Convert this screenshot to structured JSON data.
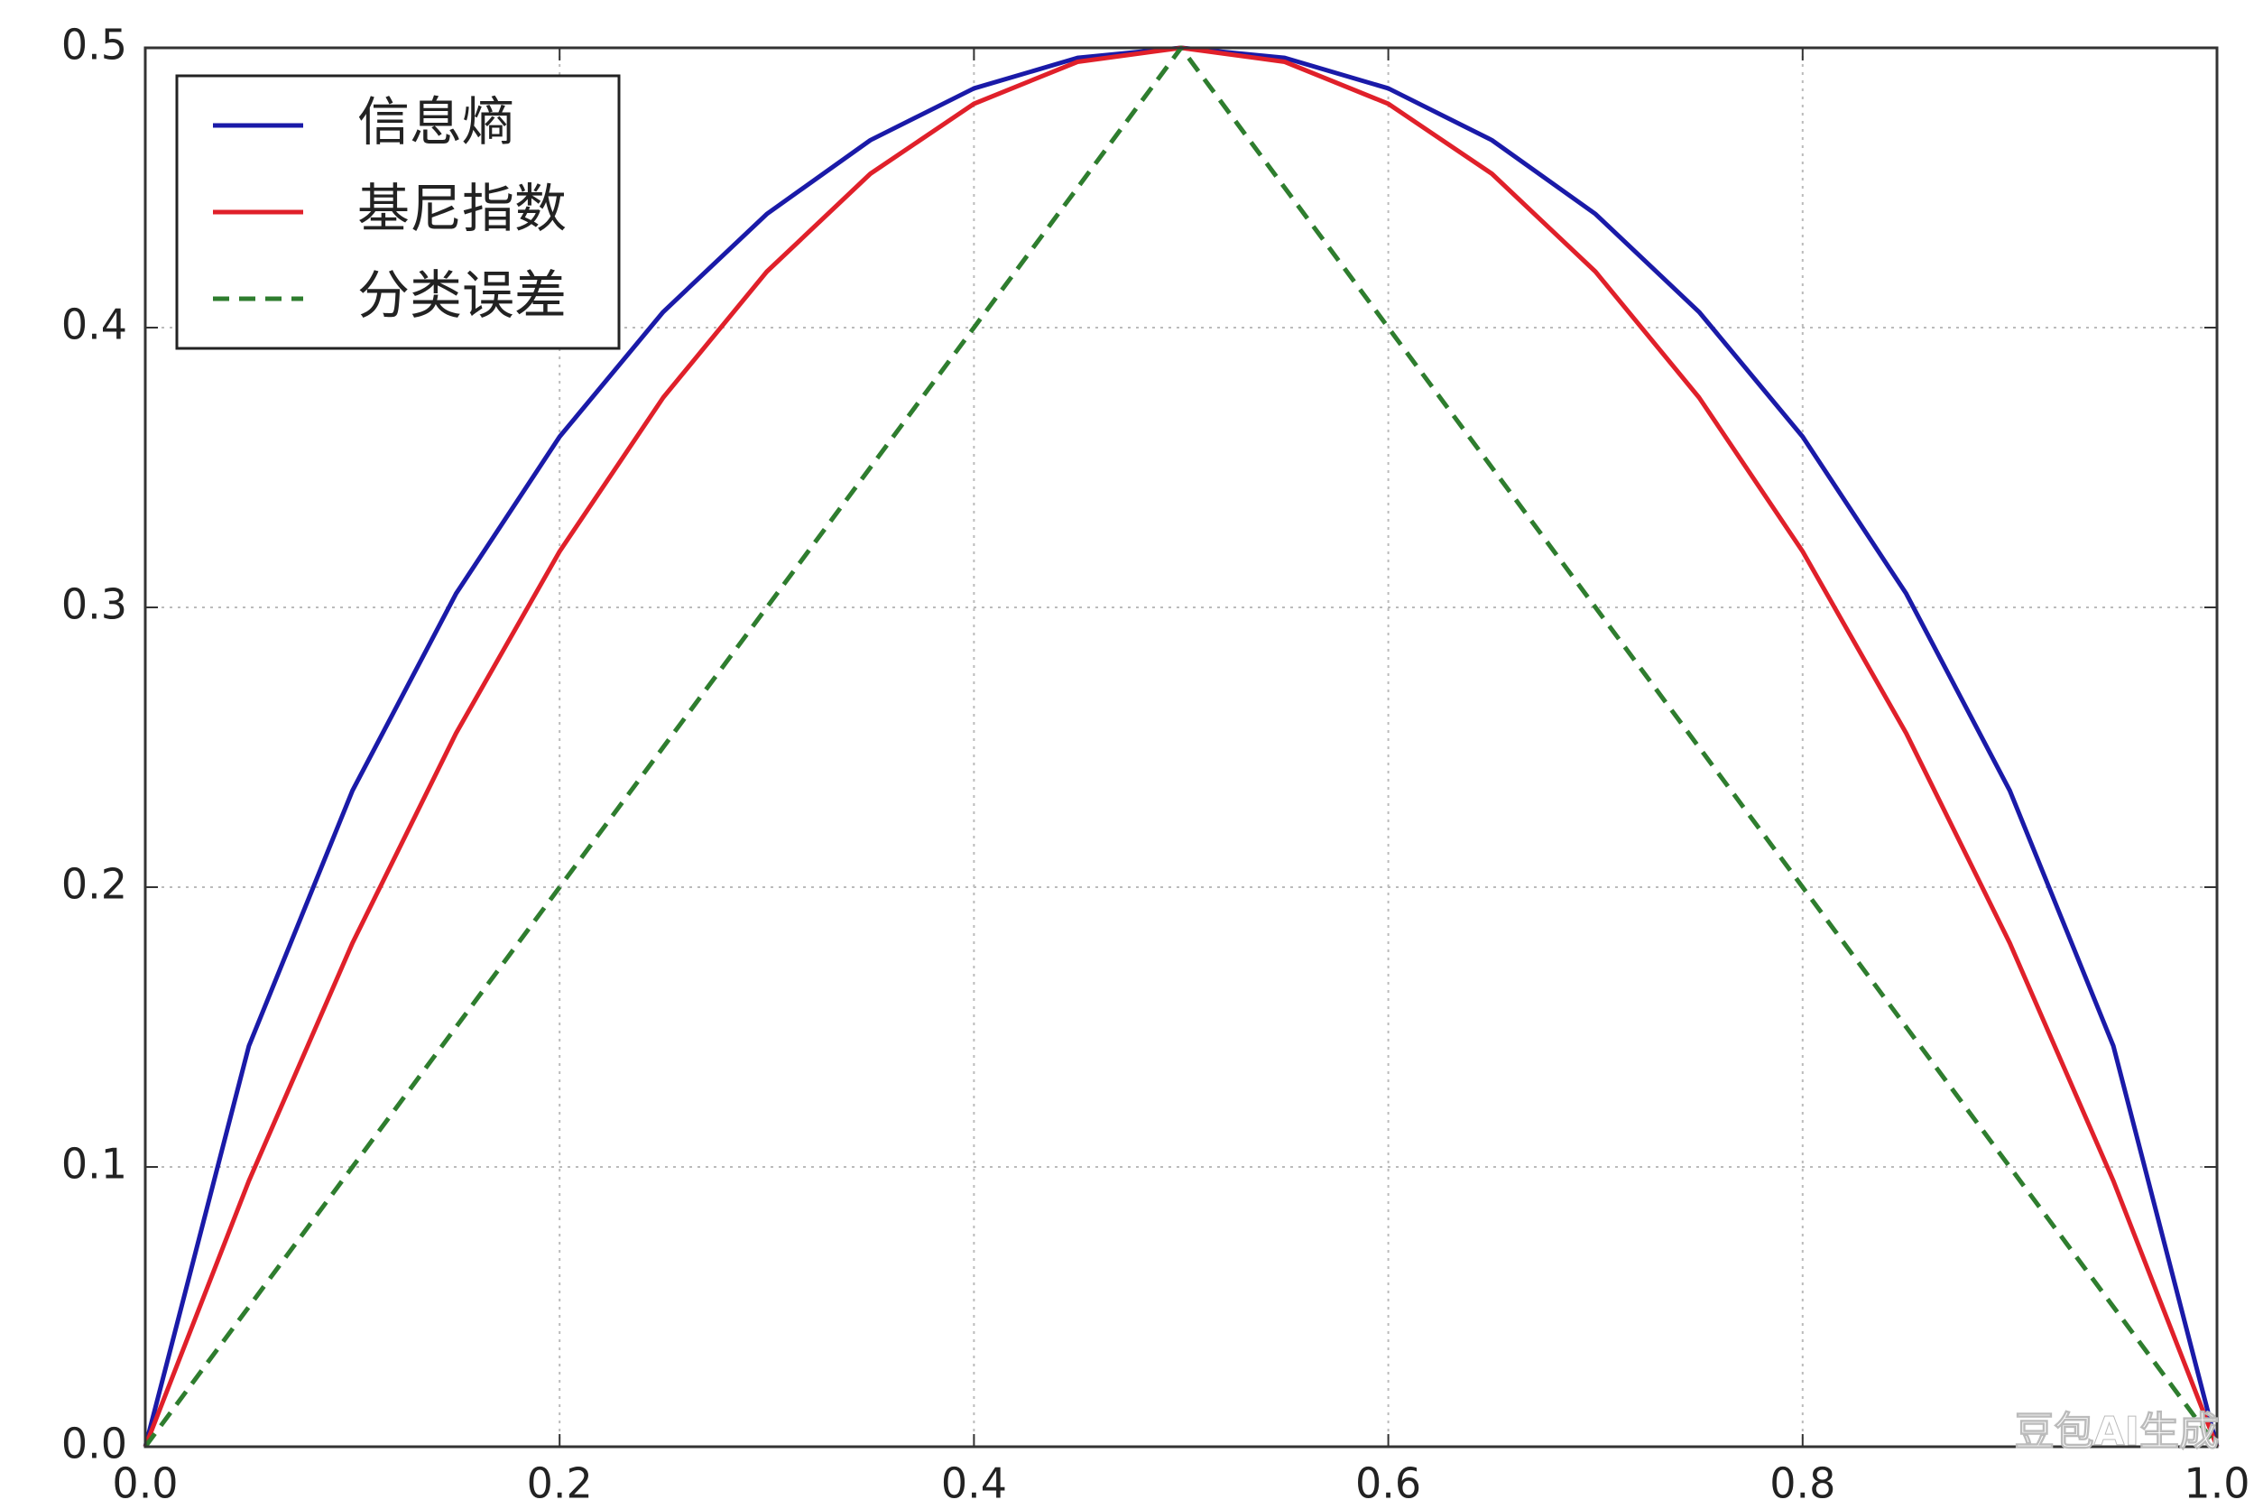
{
  "chart_data": {
    "type": "line",
    "x": [
      0,
      0.05,
      0.1,
      0.15,
      0.2,
      0.25,
      0.3,
      0.35,
      0.4,
      0.45,
      0.5,
      0.55,
      0.6,
      0.65,
      0.7,
      0.75,
      0.8,
      0.85,
      0.9,
      0.95,
      1
    ],
    "series": [
      {
        "name": "信息熵",
        "color": "#1a1aa8",
        "style": "solid",
        "values": [
          0,
          0.1432,
          0.2345,
          0.3049,
          0.361,
          0.4056,
          0.4406,
          0.467,
          0.4855,
          0.4964,
          0.5,
          0.4964,
          0.4855,
          0.467,
          0.4406,
          0.4056,
          0.361,
          0.3049,
          0.2345,
          0.1432,
          0
        ]
      },
      {
        "name": "基尼指数",
        "color": "#e0202a",
        "style": "solid",
        "values": [
          0,
          0.095,
          0.18,
          0.255,
          0.32,
          0.375,
          0.42,
          0.455,
          0.48,
          0.495,
          0.5,
          0.495,
          0.48,
          0.455,
          0.42,
          0.375,
          0.32,
          0.255,
          0.18,
          0.095,
          0
        ]
      },
      {
        "name": "分类误差",
        "color": "#2e7d2e",
        "style": "dashed",
        "values": [
          0,
          0.05,
          0.1,
          0.15,
          0.2,
          0.25,
          0.3,
          0.35,
          0.4,
          0.45,
          0.5,
          0.45,
          0.4,
          0.35,
          0.3,
          0.25,
          0.2,
          0.15,
          0.1,
          0.05,
          0
        ]
      }
    ],
    "xlim": [
      0,
      1
    ],
    "xticks": [
      {
        "value": 0,
        "label": "0.0"
      },
      0.2,
      0.4,
      0.6,
      0.8,
      {
        "value": 1,
        "label": "1.0"
      }
    ],
    "ylim": [
      0,
      0.5
    ],
    "yticks": [
      {
        "value": 0,
        "label": "0.0"
      },
      0.1,
      0.2,
      0.3,
      0.4,
      0.5
    ],
    "grid": true,
    "legend": "upper left",
    "watermark": "豆包AI生成"
  }
}
